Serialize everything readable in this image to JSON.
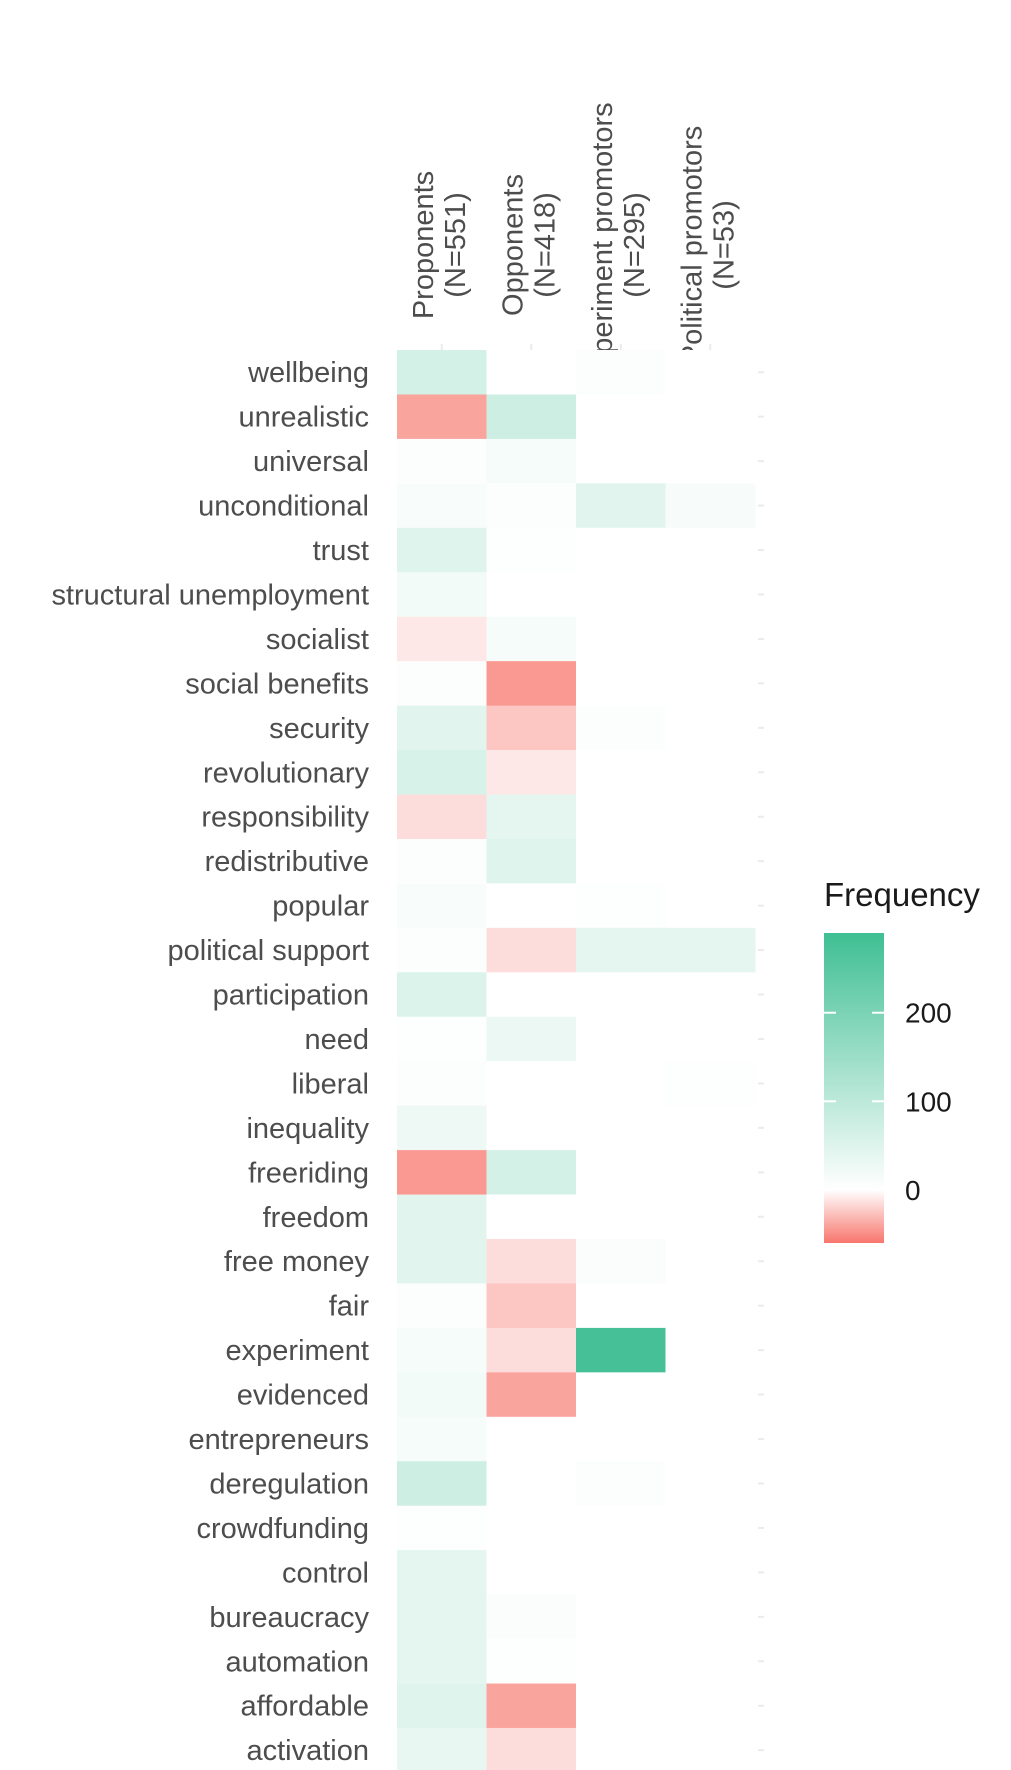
{
  "chart_data": {
    "type": "heatmap",
    "columns": [
      {
        "name": "Proponents",
        "n": "(N=551)"
      },
      {
        "name": "Opponents",
        "n": "(N=418)"
      },
      {
        "name": "Experiment promotors",
        "n": "(N=295)"
      },
      {
        "name": "Political promotors",
        "n": "(N=53)"
      }
    ],
    "rows": [
      "wellbeing",
      "unrealistic",
      "universal",
      "unconditional",
      "trust",
      "structural unemployment",
      "socialist",
      "social benefits",
      "security",
      "revolutionary",
      "responsibility",
      "redistributive",
      "popular",
      "political support",
      "participation",
      "need",
      "liberal",
      "inequality",
      "freeriding",
      "freedom",
      "free money",
      "fair",
      "experiment",
      "evidenced",
      "entrepreneurs",
      "deregulation",
      "crowdfunding",
      "control",
      "bureaucracy",
      "automation",
      "affordable",
      "activation"
    ],
    "values": [
      [
        65,
        0,
        5,
        2
      ],
      [
        -40,
        75,
        2,
        2
      ],
      [
        5,
        15,
        0,
        0
      ],
      [
        10,
        5,
        45,
        12
      ],
      [
        50,
        3,
        0,
        0
      ],
      [
        20,
        0,
        0,
        0
      ],
      [
        -10,
        15,
        0,
        0
      ],
      [
        5,
        -45,
        0,
        2
      ],
      [
        45,
        -25,
        5,
        0
      ],
      [
        60,
        -10,
        0,
        0
      ],
      [
        -15,
        40,
        0,
        0
      ],
      [
        5,
        50,
        0,
        0
      ],
      [
        10,
        0,
        3,
        0
      ],
      [
        5,
        -15,
        40,
        40
      ],
      [
        55,
        0,
        0,
        0
      ],
      [
        3,
        30,
        0,
        0
      ],
      [
        5,
        0,
        0,
        3
      ],
      [
        25,
        0,
        0,
        0
      ],
      [
        -45,
        65,
        0,
        0
      ],
      [
        45,
        0,
        0,
        0
      ],
      [
        45,
        -15,
        8,
        0
      ],
      [
        5,
        -25,
        0,
        0
      ],
      [
        15,
        -15,
        280,
        0
      ],
      [
        20,
        -40,
        0,
        0
      ],
      [
        15,
        0,
        0,
        0
      ],
      [
        75,
        0,
        5,
        0
      ],
      [
        3,
        0,
        0,
        0
      ],
      [
        40,
        0,
        0,
        0
      ],
      [
        40,
        8,
        0,
        0
      ],
      [
        40,
        3,
        0,
        0
      ],
      [
        50,
        -40,
        0,
        0
      ],
      [
        35,
        -15,
        0,
        0
      ]
    ],
    "legend": {
      "title": "Frequency",
      "ticks": [
        200,
        100,
        0
      ],
      "range": [
        -60,
        290
      ],
      "low_color": "#f8766d",
      "mid_color": "#ffffff",
      "high_color": "#3fbf93"
    }
  }
}
